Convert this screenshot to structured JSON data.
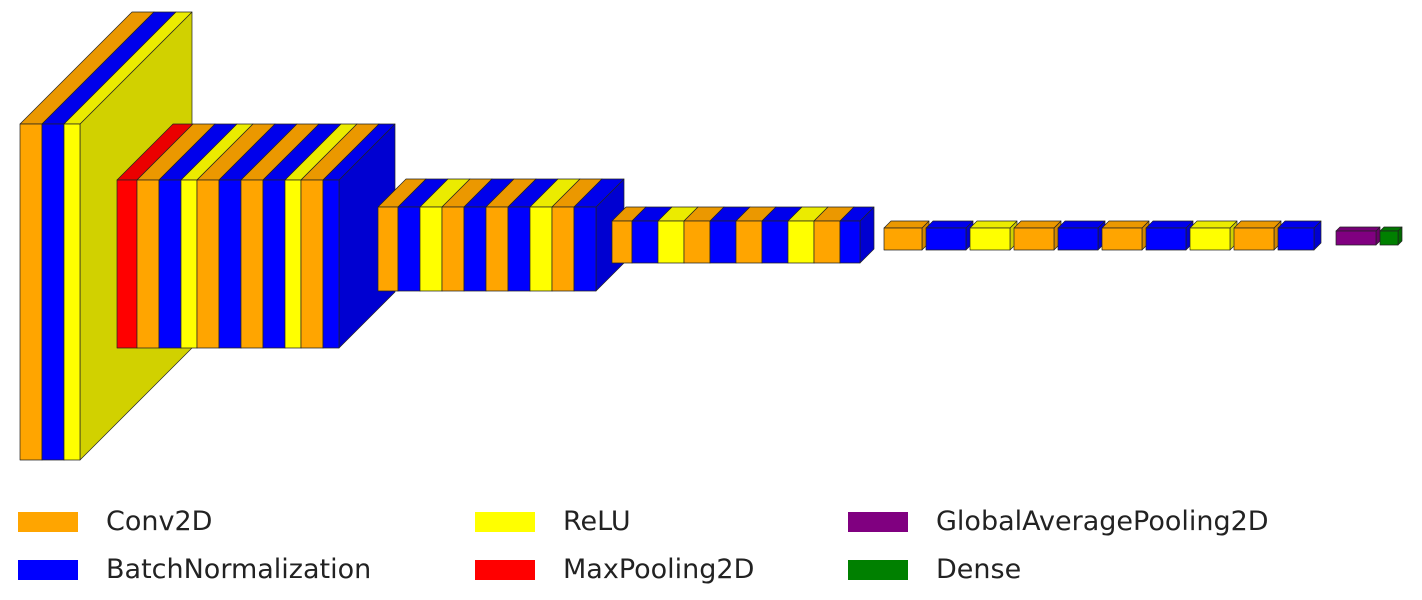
{
  "diagram": {
    "type": "neural-network-layer-visualization",
    "layer_types": [
      {
        "key": "conv",
        "name": "Conv2D",
        "color": "#ffa500"
      },
      {
        "key": "bn",
        "name": "BatchNormalization",
        "color": "#0000ff"
      },
      {
        "key": "relu",
        "name": "ReLU",
        "color": "#ffff00"
      },
      {
        "key": "pool",
        "name": "MaxPooling2D",
        "color": "#ff0000"
      },
      {
        "key": "gap",
        "name": "GlobalAveragePooling2D",
        "color": "#800080"
      },
      {
        "key": "dense",
        "name": "Dense",
        "color": "#008000"
      }
    ],
    "stages": [
      {
        "layers": [
          "conv",
          "bn",
          "relu"
        ]
      },
      {
        "layers": [
          "pool",
          "conv",
          "bn",
          "relu",
          "conv",
          "bn",
          "conv",
          "bn",
          "relu",
          "conv",
          "bn"
        ]
      },
      {
        "layers": [
          "conv",
          "bn",
          "relu",
          "conv",
          "bn",
          "conv",
          "bn",
          "relu",
          "conv",
          "bn"
        ]
      },
      {
        "layers": [
          "conv",
          "bn",
          "relu",
          "conv",
          "bn",
          "conv",
          "bn",
          "relu",
          "conv",
          "bn"
        ]
      },
      {
        "layers": [
          "conv",
          "bn",
          "relu",
          "conv",
          "bn",
          "conv",
          "bn",
          "relu",
          "conv",
          "bn"
        ]
      },
      {
        "layers": [
          "gap",
          "dense"
        ]
      }
    ]
  },
  "legend": {
    "items": [
      {
        "label": "Conv2D",
        "color": "#ffa500"
      },
      {
        "label": "BatchNormalization",
        "color": "#0000ff"
      },
      {
        "label": "ReLU",
        "color": "#ffff00"
      },
      {
        "label": "MaxPooling2D",
        "color": "#ff0000"
      },
      {
        "label": "GlobalAveragePooling2D",
        "color": "#800080"
      },
      {
        "label": "Dense",
        "color": "#008000"
      }
    ]
  }
}
